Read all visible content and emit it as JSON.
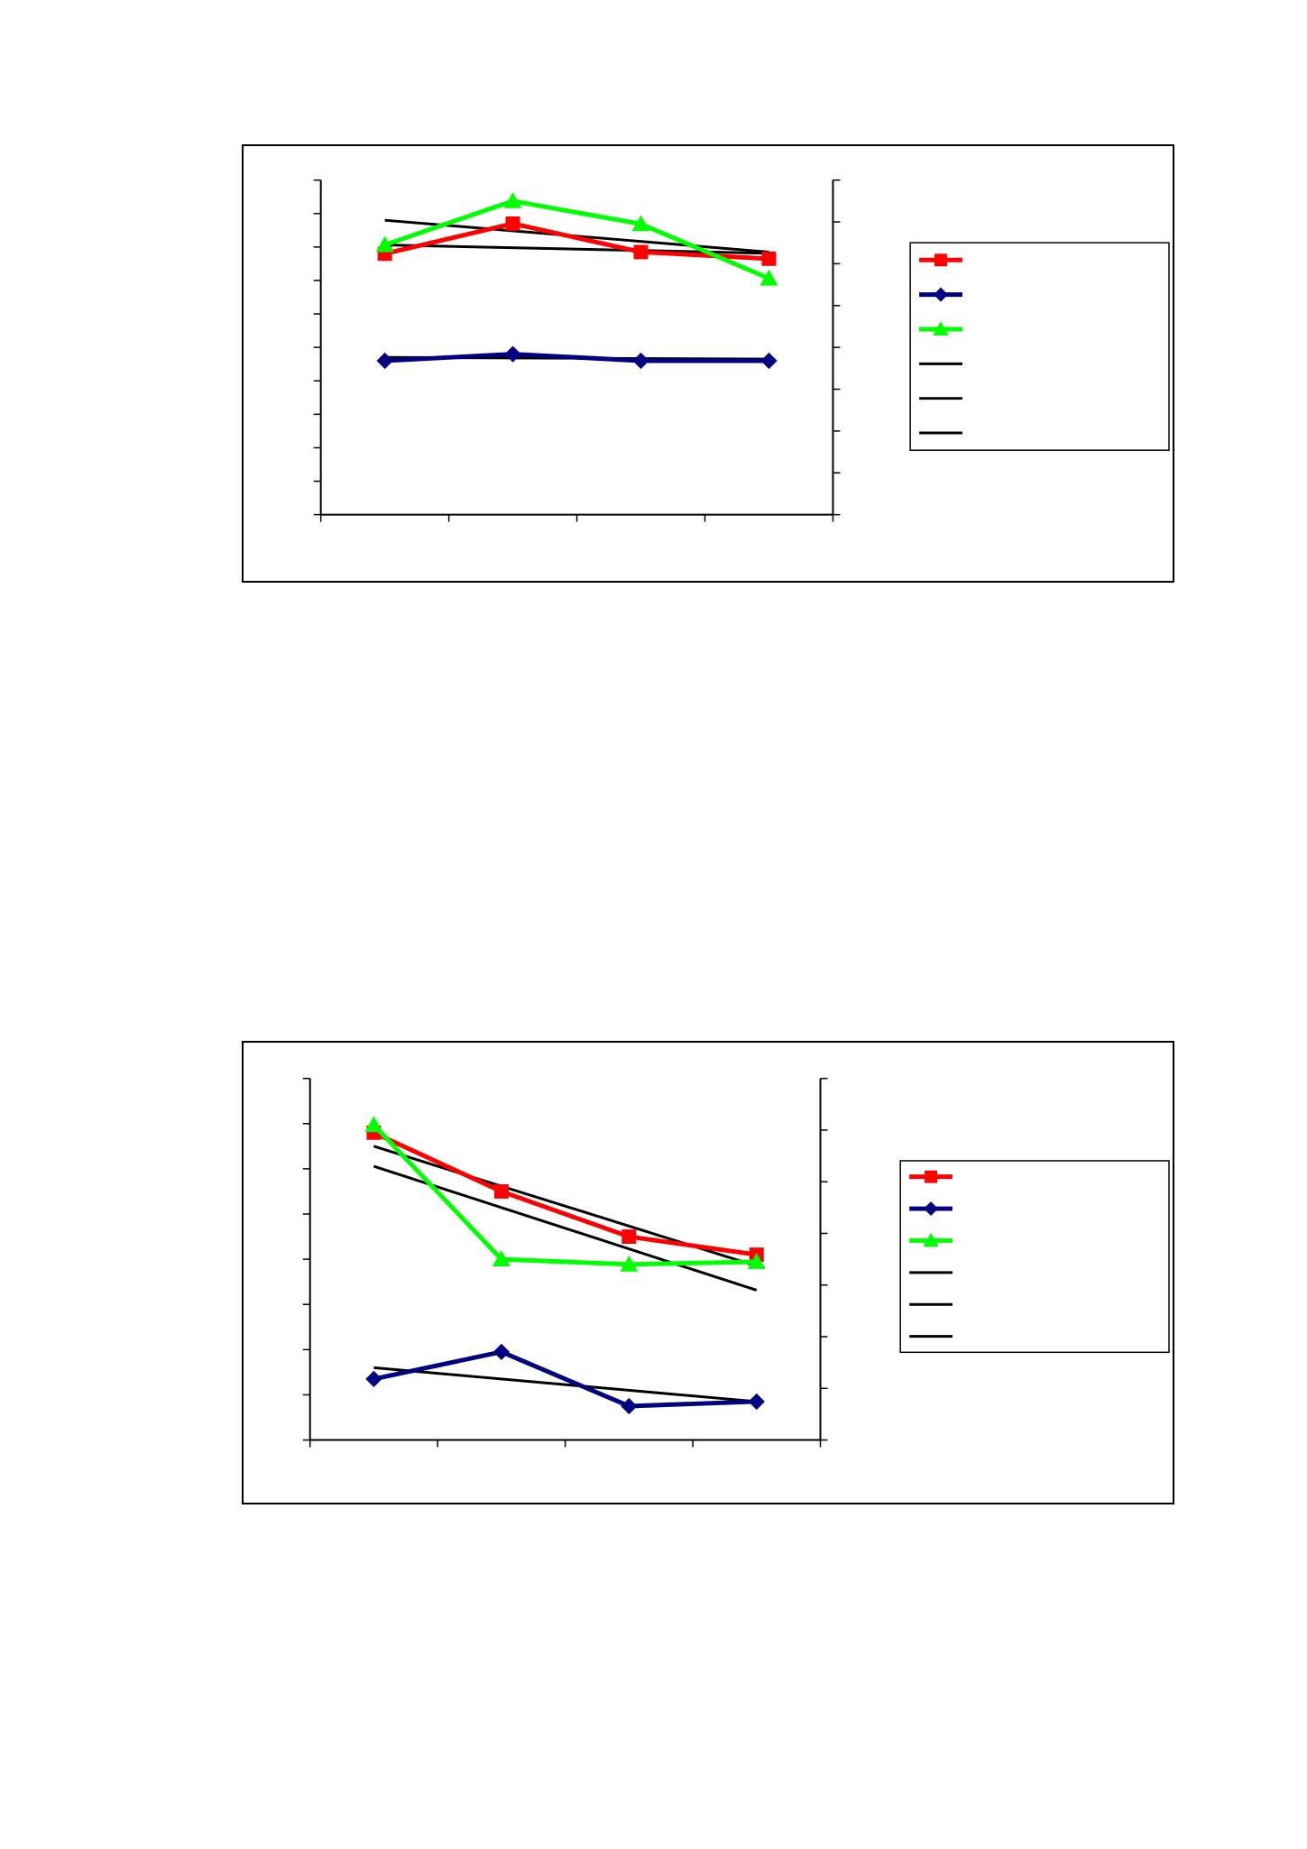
{
  "page": {
    "background": "#ffffff"
  },
  "colors": {
    "frame": "#000000",
    "axis": "#000000",
    "trend": "#000000"
  },
  "chart_data": [
    {
      "type": "line",
      "title": "",
      "xlabel": "",
      "ylabel": "",
      "y2label": "",
      "grid": false,
      "legend_position": "right",
      "x": [
        1,
        2,
        3,
        4
      ],
      "xlim": [
        0.5,
        4.5
      ],
      "ylim": [
        0,
        10
      ],
      "y_ticks": [
        0,
        1,
        2,
        3,
        4,
        5,
        6,
        7,
        8,
        9,
        10
      ],
      "y2lim": [
        0,
        8
      ],
      "y2_ticks": [
        0,
        1,
        2,
        3,
        4,
        5,
        6,
        7,
        8
      ],
      "x_ticks": [
        0.5,
        1.5,
        2.5,
        3.5,
        4.5
      ],
      "series": [
        {
          "color": "#ff0000",
          "marker": "square",
          "axis": "left",
          "values": [
            7.8,
            8.7,
            7.85,
            7.65
          ]
        },
        {
          "color": "#000080",
          "marker": "diamond",
          "axis": "left",
          "values": [
            4.6,
            4.8,
            4.6,
            4.6
          ]
        },
        {
          "color": "#00ff00",
          "marker": "triangle",
          "axis": "right",
          "values": [
            6.45,
            7.5,
            6.95,
            5.65
          ]
        }
      ],
      "trendlines": [
        {
          "color": "#000000",
          "axis": "left",
          "y_start": 8.8,
          "y_end": 7.85
        },
        {
          "color": "#000000",
          "axis": "left",
          "y_start": 4.7,
          "y_end": 4.65
        },
        {
          "color": "#000000",
          "axis": "right",
          "y_start": 6.45,
          "y_end": 6.25
        }
      ]
    },
    {
      "type": "line",
      "title": "",
      "xlabel": "",
      "ylabel": "",
      "y2label": "",
      "grid": false,
      "legend_position": "right",
      "x": [
        1,
        2,
        3,
        4
      ],
      "xlim": [
        0.5,
        4.5
      ],
      "ylim": [
        0,
        8
      ],
      "y_ticks": [
        0,
        1,
        2,
        3,
        4,
        5,
        6,
        7,
        8
      ],
      "y2lim": [
        0,
        7
      ],
      "y2_ticks": [
        0,
        1,
        2,
        3,
        4,
        5,
        6,
        7
      ],
      "x_ticks": [
        0.5,
        1.5,
        2.5,
        3.5,
        4.5
      ],
      "series": [
        {
          "color": "#ff0000",
          "marker": "square",
          "axis": "left",
          "values": [
            6.8,
            5.5,
            4.5,
            4.1
          ]
        },
        {
          "color": "#000080",
          "marker": "diamond",
          "axis": "left",
          "values": [
            1.35,
            1.95,
            0.75,
            0.85
          ]
        },
        {
          "color": "#00ff00",
          "marker": "triangle",
          "axis": "right",
          "values": [
            6.1,
            3.5,
            3.4,
            3.45
          ]
        }
      ],
      "trendlines": [
        {
          "color": "#000000",
          "axis": "left",
          "y_start": 6.5,
          "y_end": 3.85
        },
        {
          "color": "#000000",
          "axis": "left",
          "y_start": 1.6,
          "y_end": 0.85
        },
        {
          "color": "#000000",
          "axis": "right",
          "y_start": 5.3,
          "y_end": 2.9
        }
      ]
    }
  ]
}
